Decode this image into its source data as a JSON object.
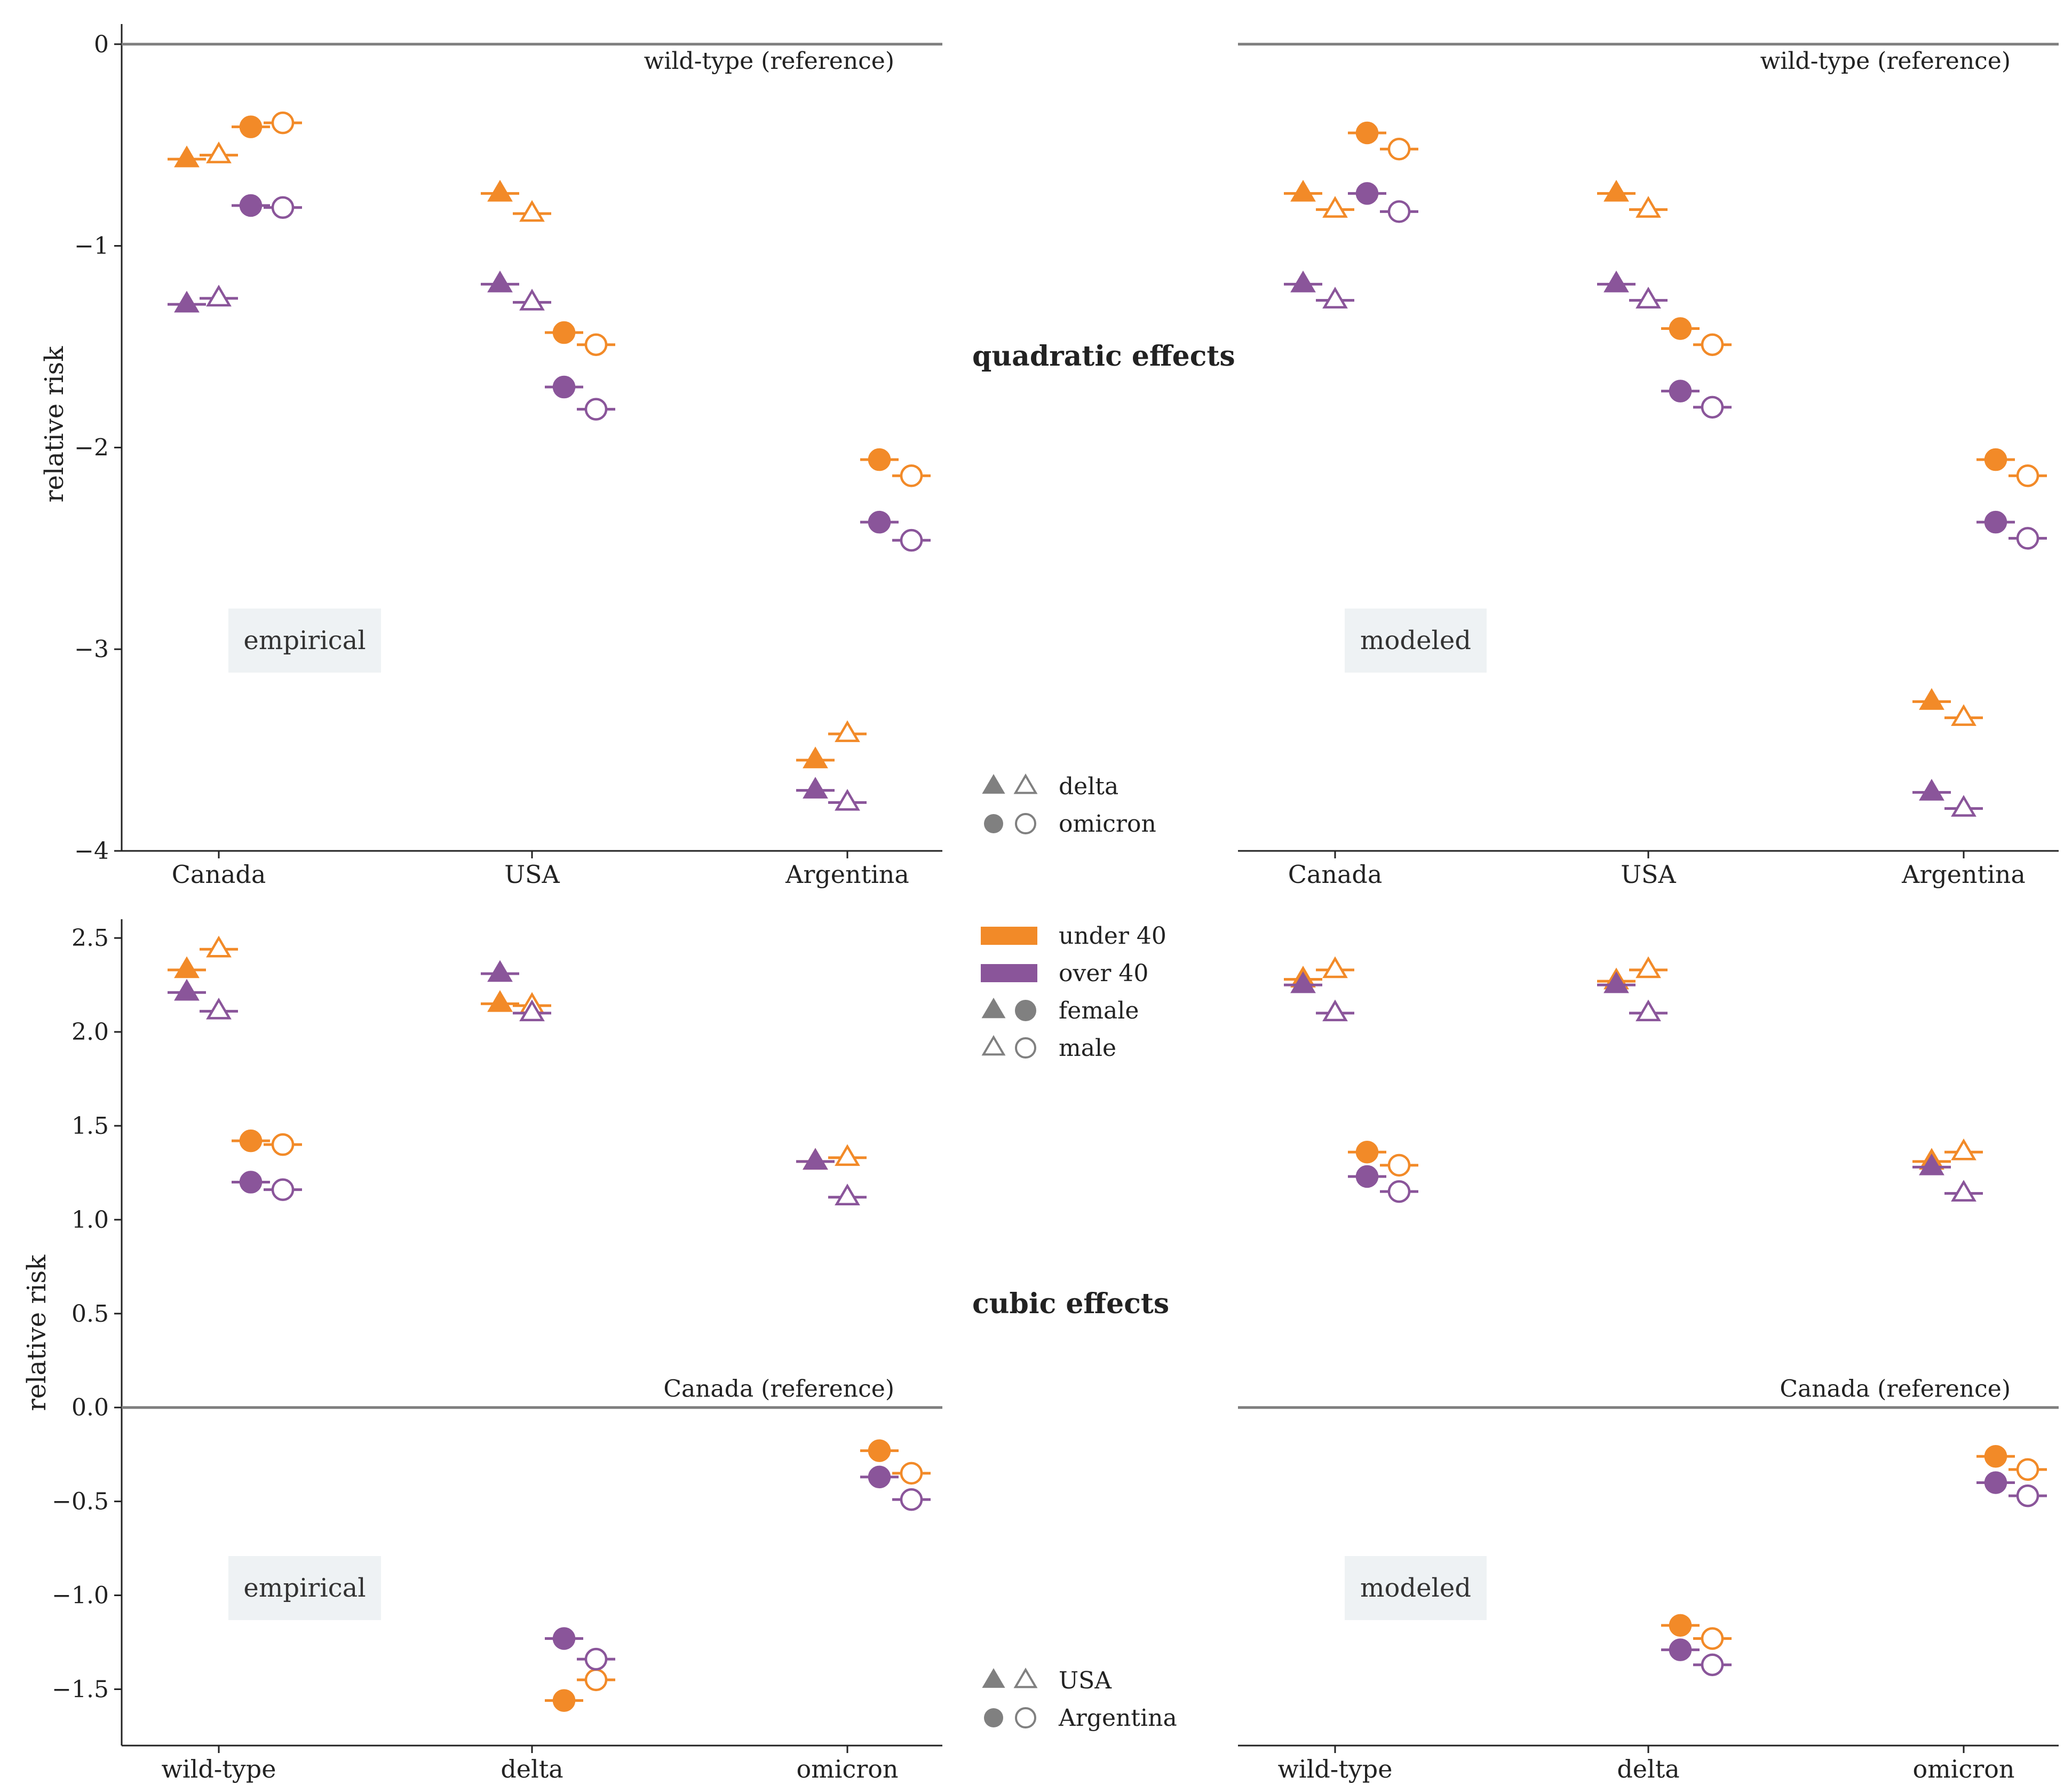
{
  "colors": {
    "under_40": "#F28A28",
    "over_40": "#8A559A",
    "reference_line": "#7f7f7f",
    "axis": "#222222",
    "badge_bg": "#EEF2F4",
    "legend_gray": "#808080"
  },
  "y_axis_label": "relative risk",
  "section_titles": {
    "top": "quadratic effects",
    "bottom": "cubic effects"
  },
  "legends": {
    "top_shapes": [
      {
        "shape": "triangle",
        "label": "delta"
      },
      {
        "shape": "circle",
        "label": "omicron"
      }
    ],
    "groups": [
      {
        "kind": "swatch",
        "color_key": "under_40",
        "label": "under 40"
      },
      {
        "kind": "swatch",
        "color_key": "over_40",
        "label": "over 40"
      },
      {
        "kind": "filled",
        "label": "female"
      },
      {
        "kind": "open",
        "label": "male"
      }
    ],
    "bottom_shapes": [
      {
        "shape": "triangle",
        "label": "USA"
      },
      {
        "shape": "circle",
        "label": "Argentina"
      }
    ]
  },
  "chart_data": [
    {
      "id": "quadratic-empirical",
      "type": "scatter",
      "badge": "empirical",
      "reference_label": "wild-type (reference)",
      "reference_value": 0,
      "categories": [
        "Canada",
        "USA",
        "Argentina"
      ],
      "ylim": [
        -4,
        0.1
      ],
      "yticks": [
        0,
        -1,
        -2,
        -3,
        -4
      ],
      "ytick_labels": [
        "0",
        "−1",
        "−2",
        "−3",
        "−4"
      ],
      "show_ylabel": true,
      "series": [
        {
          "name": "delta, under 40, female",
          "marker": "triangle",
          "group": "under_40",
          "sex": "female",
          "values": [
            -0.57,
            -0.74,
            -3.55
          ]
        },
        {
          "name": "delta, under 40, male",
          "marker": "triangle",
          "group": "under_40",
          "sex": "male",
          "values": [
            -0.55,
            -0.84,
            -3.42
          ]
        },
        {
          "name": "delta, over 40, female",
          "marker": "triangle",
          "group": "over_40",
          "sex": "female",
          "values": [
            -1.29,
            -1.19,
            -3.7
          ]
        },
        {
          "name": "delta, over 40, male",
          "marker": "triangle",
          "group": "over_40",
          "sex": "male",
          "values": [
            -1.26,
            -1.28,
            -3.76
          ]
        },
        {
          "name": "omicron, under 40, female",
          "marker": "circle",
          "group": "under_40",
          "sex": "female",
          "values": [
            -0.41,
            -1.43,
            -2.06
          ]
        },
        {
          "name": "omicron, under 40, male",
          "marker": "circle",
          "group": "under_40",
          "sex": "male",
          "values": [
            -0.39,
            -1.49,
            -2.14
          ]
        },
        {
          "name": "omicron, over 40, female",
          "marker": "circle",
          "group": "over_40",
          "sex": "female",
          "values": [
            -0.8,
            -1.7,
            -2.37
          ]
        },
        {
          "name": "omicron, over 40, male",
          "marker": "circle",
          "group": "over_40",
          "sex": "male",
          "values": [
            -0.81,
            -1.81,
            -2.46
          ]
        }
      ]
    },
    {
      "id": "quadratic-modeled",
      "type": "scatter",
      "badge": "modeled",
      "reference_label": "wild-type (reference)",
      "reference_value": 0,
      "categories": [
        "Canada",
        "USA",
        "Argentina"
      ],
      "ylim": [
        -4,
        0.1
      ],
      "yticks": [],
      "ytick_labels": [],
      "show_ylabel": false,
      "series": [
        {
          "name": "delta, under 40, female",
          "marker": "triangle",
          "group": "under_40",
          "sex": "female",
          "values": [
            -0.74,
            -0.74,
            -3.26
          ]
        },
        {
          "name": "delta, under 40, male",
          "marker": "triangle",
          "group": "under_40",
          "sex": "male",
          "values": [
            -0.82,
            -0.82,
            -3.34
          ]
        },
        {
          "name": "delta, over 40, female",
          "marker": "triangle",
          "group": "over_40",
          "sex": "female",
          "values": [
            -1.19,
            -1.19,
            -3.71
          ]
        },
        {
          "name": "delta, over 40, male",
          "marker": "triangle",
          "group": "over_40",
          "sex": "male",
          "values": [
            -1.27,
            -1.27,
            -3.79
          ]
        },
        {
          "name": "omicron, under 40, female",
          "marker": "circle",
          "group": "under_40",
          "sex": "female",
          "values": [
            -0.44,
            -1.41,
            -2.06
          ]
        },
        {
          "name": "omicron, under 40, male",
          "marker": "circle",
          "group": "under_40",
          "sex": "male",
          "values": [
            -0.52,
            -1.49,
            -2.14
          ]
        },
        {
          "name": "omicron, over 40, female",
          "marker": "circle",
          "group": "over_40",
          "sex": "female",
          "values": [
            -0.74,
            -1.72,
            -2.37
          ]
        },
        {
          "name": "omicron, over 40, male",
          "marker": "circle",
          "group": "over_40",
          "sex": "male",
          "values": [
            -0.83,
            -1.8,
            -2.45
          ]
        }
      ]
    },
    {
      "id": "cubic-empirical",
      "type": "scatter",
      "badge": "empirical",
      "reference_label": "Canada (reference)",
      "reference_value": 0,
      "categories": [
        "wild-type",
        "delta",
        "omicron"
      ],
      "ylim": [
        -1.8,
        2.6
      ],
      "yticks": [
        2.5,
        2.0,
        1.5,
        1.0,
        0.5,
        0.0,
        -0.5,
        -1.0,
        -1.5
      ],
      "ytick_labels": [
        "2.5",
        "2.0",
        "1.5",
        "1.0",
        "0.5",
        "0.0",
        "−0.5",
        "−1.0",
        "−1.5"
      ],
      "show_ylabel": true,
      "series": [
        {
          "name": "USA, under 40, female",
          "marker": "triangle",
          "group": "under_40",
          "sex": "female",
          "values": [
            2.33,
            2.15,
            null
          ]
        },
        {
          "name": "USA, under 40, male",
          "marker": "triangle",
          "group": "under_40",
          "sex": "male",
          "values": [
            2.44,
            2.14,
            null
          ]
        },
        {
          "name": "USA, over 40, female",
          "marker": "triangle",
          "group": "over_40",
          "sex": "female",
          "values": [
            2.21,
            2.31,
            null
          ]
        },
        {
          "name": "USA, over 40, male",
          "marker": "triangle",
          "group": "over_40",
          "sex": "male",
          "values": [
            2.11,
            2.1,
            null
          ]
        },
        {
          "name": "Argentina, under 40, female",
          "marker": "circle",
          "group": "under_40",
          "sex": "female",
          "values": [
            1.42,
            -1.56,
            -0.23
          ]
        },
        {
          "name": "Argentina, under 40, male",
          "marker": "circle",
          "group": "under_40",
          "sex": "male",
          "values": [
            1.4,
            -1.45,
            -0.35
          ]
        },
        {
          "name": "Argentina, over 40, female",
          "marker": "circle",
          "group": "over_40",
          "sex": "female",
          "values": [
            1.2,
            -1.23,
            -0.37
          ]
        },
        {
          "name": "Argentina, over 40, male",
          "marker": "circle",
          "group": "over_40",
          "sex": "male",
          "values": [
            1.16,
            -1.34,
            -0.49
          ]
        },
        {
          "name": "USA omicron, under 40, female",
          "marker": "triangle",
          "group": "under_40",
          "sex": "female",
          "values": [
            null,
            null,
            1.31
          ],
          "slot": 0
        },
        {
          "name": "USA omicron, under 40, male",
          "marker": "triangle",
          "group": "under_40",
          "sex": "male",
          "values": [
            null,
            null,
            1.33
          ],
          "slot": 1
        },
        {
          "name": "USA omicron, over 40, female",
          "marker": "triangle",
          "group": "over_40",
          "sex": "female",
          "values": [
            null,
            null,
            1.31
          ],
          "slot": 0
        },
        {
          "name": "USA omicron, over 40, male",
          "marker": "triangle",
          "group": "over_40",
          "sex": "male",
          "values": [
            null,
            null,
            1.12
          ],
          "slot": 1
        }
      ]
    },
    {
      "id": "cubic-modeled",
      "type": "scatter",
      "badge": "modeled",
      "reference_label": "Canada (reference)",
      "reference_value": 0,
      "categories": [
        "wild-type",
        "delta",
        "omicron"
      ],
      "ylim": [
        -1.8,
        2.6
      ],
      "yticks": [],
      "ytick_labels": [],
      "show_ylabel": false,
      "series": [
        {
          "name": "USA, under 40, female",
          "marker": "triangle",
          "group": "under_40",
          "sex": "female",
          "values": [
            2.28,
            2.27,
            null
          ]
        },
        {
          "name": "USA, under 40, male",
          "marker": "triangle",
          "group": "under_40",
          "sex": "male",
          "values": [
            2.33,
            2.33,
            null
          ]
        },
        {
          "name": "USA, over 40, female",
          "marker": "triangle",
          "group": "over_40",
          "sex": "female",
          "values": [
            2.25,
            2.25,
            null
          ]
        },
        {
          "name": "USA, over 40, male",
          "marker": "triangle",
          "group": "over_40",
          "sex": "male",
          "values": [
            2.1,
            2.1,
            null
          ]
        },
        {
          "name": "Argentina, under 40, female",
          "marker": "circle",
          "group": "under_40",
          "sex": "female",
          "values": [
            1.36,
            -1.16,
            -0.26
          ]
        },
        {
          "name": "Argentina, under 40, male",
          "marker": "circle",
          "group": "under_40",
          "sex": "male",
          "values": [
            1.29,
            -1.23,
            -0.33
          ]
        },
        {
          "name": "Argentina, over 40, female",
          "marker": "circle",
          "group": "over_40",
          "sex": "female",
          "values": [
            1.23,
            -1.29,
            -0.4
          ]
        },
        {
          "name": "Argentina, over 40, male",
          "marker": "circle",
          "group": "over_40",
          "sex": "male",
          "values": [
            1.15,
            -1.37,
            -0.47
          ]
        },
        {
          "name": "USA omicron, under 40, female",
          "marker": "triangle",
          "group": "under_40",
          "sex": "female",
          "values": [
            null,
            null,
            1.31
          ],
          "slot": 0
        },
        {
          "name": "USA omicron, under 40, male",
          "marker": "triangle",
          "group": "under_40",
          "sex": "male",
          "values": [
            null,
            null,
            1.36
          ],
          "slot": 1
        },
        {
          "name": "USA omicron, over 40, female",
          "marker": "triangle",
          "group": "over_40",
          "sex": "female",
          "values": [
            null,
            null,
            1.28
          ],
          "slot": 0
        },
        {
          "name": "USA omicron, over 40, male",
          "marker": "triangle",
          "group": "over_40",
          "sex": "male",
          "values": [
            null,
            null,
            1.14
          ],
          "slot": 1
        }
      ]
    }
  ]
}
